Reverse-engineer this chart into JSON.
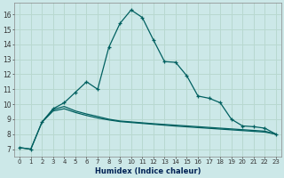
{
  "xlabel": "Humidex (Indice chaleur)",
  "xlim": [
    -0.5,
    23.5
  ],
  "ylim": [
    6.5,
    16.8
  ],
  "xticks": [
    0,
    1,
    2,
    3,
    4,
    5,
    6,
    7,
    8,
    9,
    10,
    11,
    12,
    13,
    14,
    15,
    16,
    17,
    18,
    19,
    20,
    21,
    22,
    23
  ],
  "yticks": [
    7,
    8,
    9,
    10,
    11,
    12,
    13,
    14,
    15,
    16
  ],
  "bg_color": "#cce8e8",
  "grid_color": "#b8d8d0",
  "line_color": "#006060",
  "line1_x": [
    0,
    1,
    2,
    3,
    4,
    5,
    6,
    7,
    8,
    9,
    10,
    11,
    12,
    13,
    14,
    15,
    16,
    17,
    18,
    19,
    20,
    21,
    22,
    23
  ],
  "line1_y": [
    7.1,
    7.0,
    8.8,
    9.7,
    10.1,
    10.8,
    11.5,
    11.0,
    13.8,
    15.4,
    16.3,
    15.8,
    14.3,
    12.85,
    12.8,
    11.9,
    10.55,
    10.4,
    10.1,
    9.0,
    8.55,
    8.5,
    8.4,
    8.0
  ],
  "line2_x": [
    0,
    1,
    2,
    3,
    4,
    5,
    6,
    7,
    8,
    9,
    10,
    11,
    12,
    13,
    14,
    15,
    16,
    17,
    18,
    19,
    20,
    21,
    22,
    23
  ],
  "line2_y": [
    7.1,
    7.0,
    8.8,
    9.65,
    9.85,
    9.55,
    9.35,
    9.18,
    9.0,
    8.88,
    8.82,
    8.76,
    8.7,
    8.65,
    8.6,
    8.55,
    8.5,
    8.45,
    8.4,
    8.35,
    8.3,
    8.25,
    8.2,
    8.0
  ],
  "line3_x": [
    2,
    3,
    4,
    5,
    6,
    7,
    8,
    9,
    10,
    11,
    12,
    13,
    14,
    15,
    16,
    17,
    18,
    19,
    20,
    21,
    22,
    23
  ],
  "line3_y": [
    8.8,
    9.55,
    9.7,
    9.45,
    9.25,
    9.08,
    8.95,
    8.84,
    8.78,
    8.72,
    8.66,
    8.6,
    8.54,
    8.49,
    8.44,
    8.39,
    8.34,
    8.29,
    8.24,
    8.19,
    8.14,
    8.0
  ]
}
